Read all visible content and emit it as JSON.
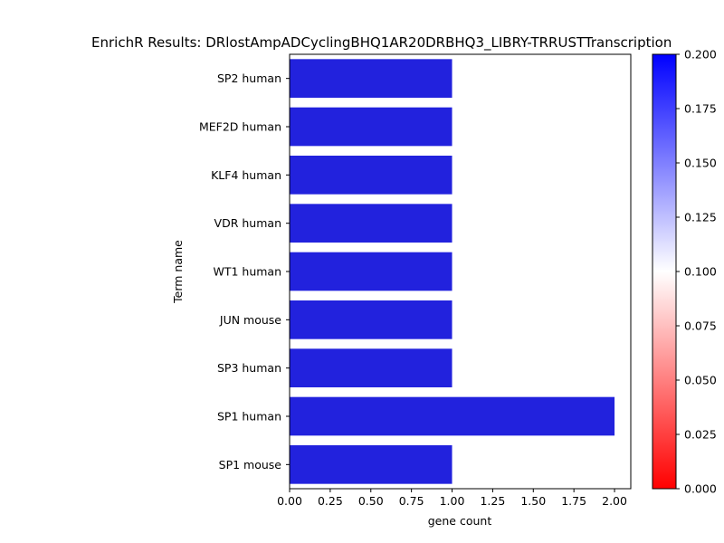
{
  "chart_data": {
    "type": "bar",
    "orientation": "horizontal",
    "title": "EnrichR Results: DRlostAmpADCyclingBHQ1AR20DRBHQ3_LIBRY-TRRUSTTranscription",
    "xlabel": "gene count",
    "ylabel": "Term name",
    "categories": [
      "SP2 human",
      "MEF2D human",
      "KLF4 human",
      "VDR human",
      "WT1 human",
      "JUN mouse",
      "SP3 human",
      "SP1 human",
      "SP1 mouse"
    ],
    "values": [
      1,
      1,
      1,
      1,
      1,
      1,
      1,
      2,
      1
    ],
    "bar_color": "#2222dd",
    "xlim": [
      0,
      2.1
    ],
    "xticks": [
      "0.00",
      "0.25",
      "0.50",
      "0.75",
      "1.00",
      "1.25",
      "1.50",
      "1.75",
      "2.00"
    ],
    "colorbar": {
      "colors": [
        "#ff0000",
        "#ffffff",
        "#0000ff"
      ],
      "range": [
        0,
        0.2
      ],
      "ticks": [
        "0.000",
        "0.025",
        "0.050",
        "0.075",
        "0.100",
        "0.125",
        "0.150",
        "0.175",
        "0.200"
      ]
    }
  }
}
